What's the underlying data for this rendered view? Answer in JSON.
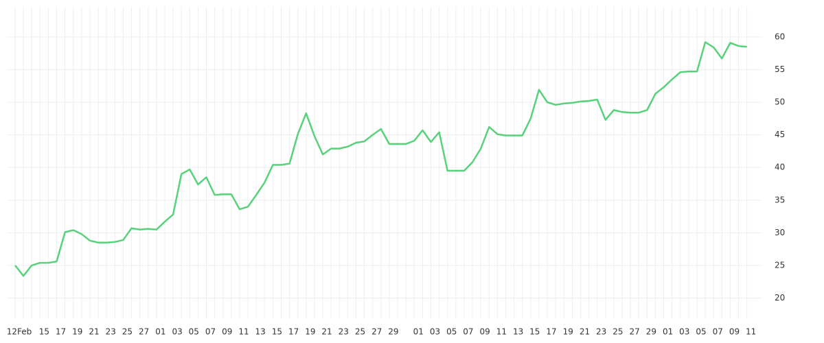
{
  "chart_data": {
    "type": "line",
    "categories": [
      "12Feb",
      null,
      null,
      "15",
      null,
      "17",
      null,
      "19",
      null,
      "21",
      null,
      "23",
      null,
      "25",
      null,
      "27",
      null,
      "01",
      null,
      "03",
      null,
      "05",
      null,
      "07",
      null,
      "09",
      null,
      "11",
      null,
      "13",
      null,
      "15",
      null,
      "17",
      null,
      "19",
      null,
      "21",
      null,
      "23",
      null,
      "25",
      null,
      "27",
      null,
      "29",
      null,
      null,
      "01",
      null,
      "03",
      null,
      "05",
      null,
      "07",
      null,
      "09",
      null,
      "11",
      null,
      "13",
      null,
      "15",
      null,
      "17",
      null,
      "19",
      null,
      "21",
      null,
      "23",
      null,
      "25",
      null,
      "27",
      null,
      "29",
      null,
      "01",
      null,
      "03",
      null,
      "05",
      null,
      "07",
      null,
      "09",
      null,
      "11"
    ],
    "values": [
      25.0,
      23.4,
      25.0,
      25.4,
      25.4,
      25.6,
      30.1,
      30.4,
      29.8,
      28.8,
      28.5,
      28.5,
      28.6,
      28.9,
      30.7,
      30.5,
      30.6,
      30.5,
      31.7,
      32.8,
      39.0,
      39.7,
      37.4,
      38.5,
      35.8,
      35.9,
      35.9,
      33.6,
      34.0,
      35.8,
      37.7,
      40.4,
      40.4,
      40.6,
      45.1,
      48.3,
      44.8,
      42.0,
      42.9,
      42.9,
      43.2,
      43.8,
      44.0,
      45.0,
      45.9,
      43.6,
      43.6,
      43.6,
      44.1,
      45.7,
      43.9,
      45.4,
      39.5,
      39.5,
      39.5,
      40.8,
      42.9,
      46.2,
      45.1,
      44.9,
      44.9,
      44.9,
      47.5,
      51.9,
      50.0,
      49.6,
      49.8,
      49.9,
      50.1,
      50.2,
      50.4,
      47.3,
      48.8,
      48.5,
      48.4,
      48.4,
      48.8,
      51.3,
      52.3,
      53.5,
      54.6,
      54.7,
      54.7,
      59.2,
      58.4,
      56.7,
      59.1,
      58.6,
      58.5
    ],
    "color": "#57d17a",
    "ylim": [
      16.8,
      64.6
    ],
    "yticks": [
      20,
      25,
      30,
      35,
      40,
      45,
      50,
      55,
      60
    ],
    "grid": true
  }
}
